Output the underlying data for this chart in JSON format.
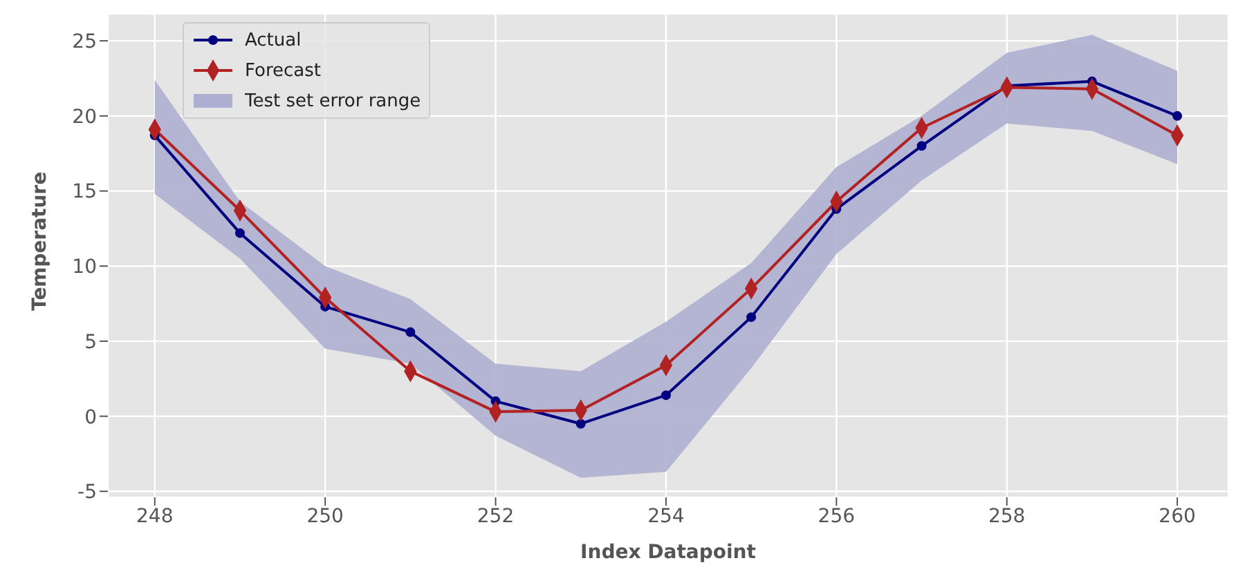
{
  "chart_data": {
    "type": "line",
    "xlabel": "Index Datapoint",
    "ylabel": "Temperature",
    "x": [
      248,
      249,
      250,
      251,
      252,
      253,
      254,
      255,
      256,
      257,
      258,
      259,
      260
    ],
    "series": [
      {
        "name": "Actual",
        "color": "#000080",
        "marker": "circle",
        "values": [
          18.7,
          12.2,
          7.3,
          5.6,
          1.0,
          -0.5,
          1.4,
          6.6,
          13.8,
          18.0,
          22.0,
          22.3,
          20.0
        ]
      },
      {
        "name": "Forecast",
        "color": "#b22222",
        "marker": "diamond",
        "values": [
          19.1,
          13.7,
          7.9,
          3.0,
          0.3,
          0.4,
          3.4,
          8.5,
          14.3,
          19.2,
          21.9,
          21.8,
          18.7
        ]
      },
      {
        "name": "Test set error range",
        "type": "area",
        "color": "#aeaed0",
        "values": [
          null,
          null,
          null,
          null,
          null,
          null,
          null,
          null,
          null,
          null,
          null,
          null,
          null
        ],
        "lower": [
          14.8,
          10.5,
          4.5,
          3.5,
          -1.3,
          -4.1,
          -3.7,
          3.2,
          10.8,
          15.7,
          19.5,
          19.0,
          16.8
        ],
        "upper": [
          22.4,
          14.3,
          10.0,
          7.8,
          3.5,
          3.0,
          6.3,
          10.2,
          16.6,
          20.0,
          24.2,
          25.4,
          23.0
        ]
      }
    ],
    "xlim": [
      247.45,
      260.6
    ],
    "xticks": [
      248,
      250,
      252,
      254,
      256,
      258,
      260
    ],
    "ylim": [
      -5.4,
      26.8
    ],
    "yticks": [
      -5,
      0,
      5,
      10,
      15,
      20,
      25
    ],
    "grid": true,
    "legend": "top left"
  }
}
